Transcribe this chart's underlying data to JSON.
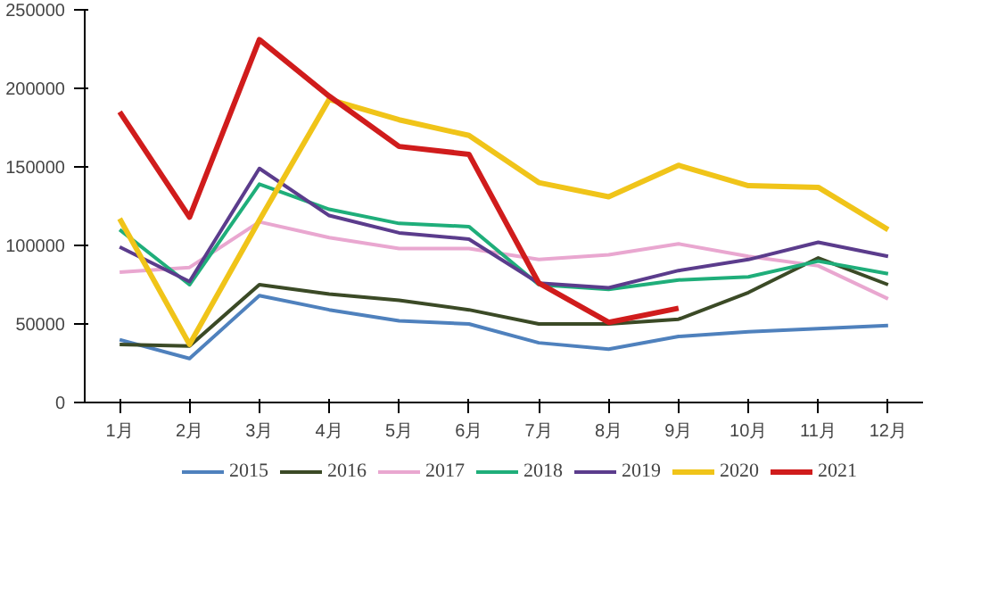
{
  "chart_data": {
    "type": "line",
    "categories": [
      "1月",
      "2月",
      "3月",
      "4月",
      "5月",
      "6月",
      "7月",
      "8月",
      "9月",
      "10月",
      "11月",
      "12月"
    ],
    "ylim": [
      0,
      250000
    ],
    "yticks": [
      0,
      50000,
      100000,
      150000,
      200000,
      250000
    ],
    "grid": false,
    "legend": "bottom",
    "marker": "none",
    "series": [
      {
        "name": "2015",
        "color": "#4f81bd",
        "values": [
          40000,
          28000,
          68000,
          59000,
          52000,
          50000,
          38000,
          34000,
          42000,
          45000,
          47000,
          49000
        ]
      },
      {
        "name": "2016",
        "color": "#3b4a26",
        "values": [
          37000,
          36000,
          75000,
          69000,
          65000,
          59000,
          50000,
          50000,
          53000,
          70000,
          92000,
          75000
        ]
      },
      {
        "name": "2017",
        "color": "#e9a7d0",
        "values": [
          83000,
          86000,
          115000,
          105000,
          98000,
          98000,
          91000,
          94000,
          101000,
          93000,
          87000,
          66000
        ]
      },
      {
        "name": "2018",
        "color": "#1fae7a",
        "values": [
          110000,
          75000,
          139000,
          123000,
          114000,
          112000,
          75000,
          72000,
          78000,
          80000,
          90000,
          82000
        ]
      },
      {
        "name": "2019",
        "color": "#5b3c8c",
        "values": [
          99000,
          77000,
          149000,
          119000,
          108000,
          104000,
          76000,
          73000,
          84000,
          91000,
          102000,
          93000
        ]
      },
      {
        "name": "2020",
        "color": "#f0c419",
        "values": [
          117000,
          37000,
          116000,
          193000,
          180000,
          170000,
          140000,
          131000,
          151000,
          138000,
          137000,
          110000
        ]
      },
      {
        "name": "2021",
        "color": "#d01c1c",
        "values": [
          185000,
          118000,
          231000,
          195000,
          163000,
          158000,
          76000,
          51000,
          60000,
          null,
          null,
          null
        ]
      }
    ]
  }
}
